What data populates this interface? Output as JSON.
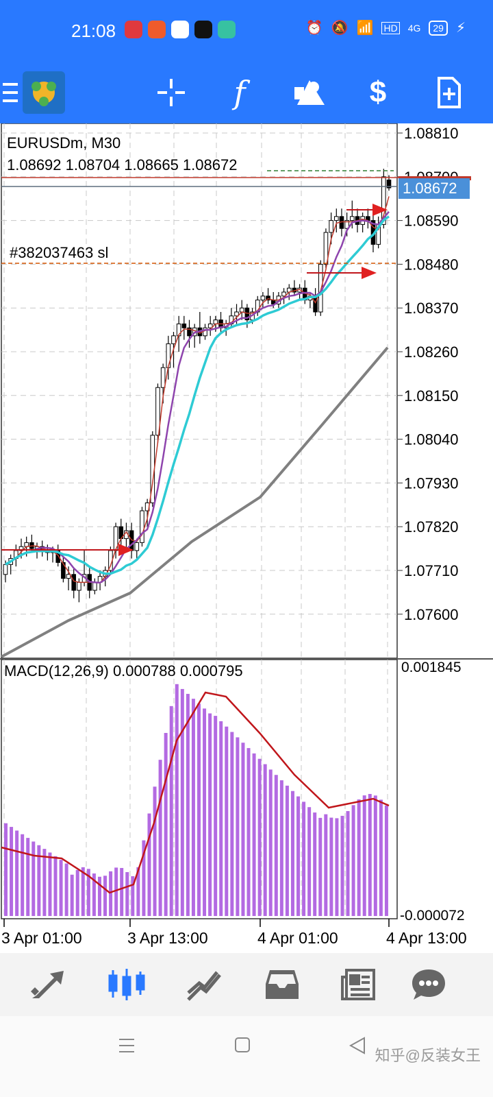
{
  "status_bar": {
    "time": "21:08",
    "battery": "29",
    "network": "4G",
    "hd": "HD"
  },
  "toolbar": {
    "items": [
      "menu-icon",
      "app-logo",
      "crosshair-icon",
      "function-icon",
      "objects-icon",
      "trade-icon",
      "new-order-icon"
    ]
  },
  "chart": {
    "symbol_timeframe": "EURUSDm, M30",
    "ohlc": "1.08692 1.08704 1.08665 1.08672",
    "current_price": "1.08672",
    "price_axis_labels": [
      "1.08810",
      "1.08700",
      "1.08590",
      "1.08480",
      "1.08370",
      "1.08260",
      "1.08150",
      "1.08040",
      "1.07930",
      "1.07820",
      "1.07710",
      "1.07600"
    ],
    "order_label": "#382037463 sl",
    "colors": {
      "bull_body": "#ffffff",
      "bear_body": "#000000",
      "ma_fast": "#c0392b",
      "ma_mid": "#8e44ad",
      "ma_slow": "#2ecbd4",
      "ma_long": "#808080",
      "grid": "#c8c8c8",
      "price_tag": "#4a90d9",
      "sl_line": "#d35400"
    }
  },
  "macd": {
    "label": "MACD(12,26,9) 0.000788 0.000795",
    "axis_top": "0.001845",
    "axis_bottom": "-0.000072",
    "hist_color": "#b36ae2",
    "signal_color": "#c0161b"
  },
  "time_axis": [
    "3 Apr 01:00",
    "3 Apr 13:00",
    "4 Apr 01:00",
    "4 Apr 13:00"
  ],
  "bottom_nav": [
    {
      "name": "quotes",
      "icon": "quotes-icon"
    },
    {
      "name": "chart",
      "icon": "chart-icon",
      "active": true
    },
    {
      "name": "trade",
      "icon": "trade-icon"
    },
    {
      "name": "history",
      "icon": "inbox-icon"
    },
    {
      "name": "news",
      "icon": "news-icon"
    },
    {
      "name": "messages",
      "icon": "chat-icon"
    }
  ],
  "watermark": "知乎@反装女王"
}
